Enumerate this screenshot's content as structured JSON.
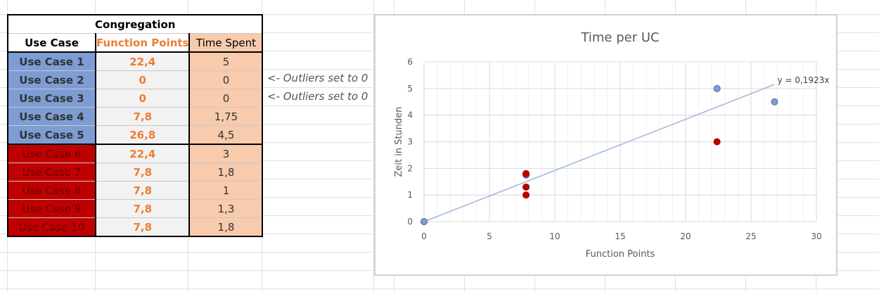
{
  "table": {
    "title": "Congregation",
    "headers": {
      "use_case": "Use Case",
      "function_points": "Function Points",
      "time_spent": "Time Spent"
    },
    "rows": [
      {
        "use_case": "Use Case 1",
        "function_points": "22,4",
        "time_spent": "5",
        "group": "blue"
      },
      {
        "use_case": "Use Case 2",
        "function_points": "0",
        "time_spent": "0",
        "group": "blue"
      },
      {
        "use_case": "Use Case 3",
        "function_points": "0",
        "time_spent": "0",
        "group": "blue"
      },
      {
        "use_case": "Use Case 4",
        "function_points": "7,8",
        "time_spent": "1,75",
        "group": "blue"
      },
      {
        "use_case": "Use Case 5",
        "function_points": "26,8",
        "time_spent": "4,5",
        "group": "blue"
      },
      {
        "use_case": "Use Case 6",
        "function_points": "22,4",
        "time_spent": "3",
        "group": "red"
      },
      {
        "use_case": "Use Case 7",
        "function_points": "7,8",
        "time_spent": "1,8",
        "group": "red"
      },
      {
        "use_case": "Use Case 8",
        "function_points": "7,8",
        "time_spent": "1",
        "group": "red"
      },
      {
        "use_case": "Use Case 9",
        "function_points": "7,8",
        "time_spent": "1,3",
        "group": "red"
      },
      {
        "use_case": "Use Case 10",
        "function_points": "7,8",
        "time_spent": "1,8",
        "group": "red"
      }
    ]
  },
  "notes": [
    "<- Outliers set to 0",
    "<- Outliers set to 0"
  ],
  "colors": {
    "blue_fill": "#7d9dd4",
    "red_fill": "#c00000",
    "orange_text": "#ed7d31",
    "peach_fill": "#f8cbad",
    "gray_fill": "#f2f2f2",
    "trendline": "#9db7dc"
  },
  "chart_data": {
    "type": "scatter",
    "title": "Time per UC",
    "xlabel": "Function Points",
    "ylabel": "Zeit in Stunden",
    "xlim": [
      0,
      30
    ],
    "ylim": [
      0,
      6
    ],
    "xticks": [
      0,
      5,
      10,
      15,
      20,
      25,
      30
    ],
    "yticks": [
      0,
      1,
      2,
      3,
      4,
      5,
      6
    ],
    "grid": true,
    "series": [
      {
        "color": "#7d9dd4",
        "x": [
          22.4,
          0,
          0,
          7.8,
          26.8
        ],
        "y": [
          5,
          0,
          0,
          1.75,
          4.5
        ]
      },
      {
        "color": "#c00000",
        "x": [
          22.4,
          7.8,
          7.8,
          7.8,
          7.8
        ],
        "y": [
          3,
          1.8,
          1,
          1.3,
          1.8
        ]
      }
    ],
    "trendline": {
      "slope": 0.1923,
      "x_range": [
        0,
        26.8
      ],
      "label": "y = 0,1923x"
    }
  }
}
